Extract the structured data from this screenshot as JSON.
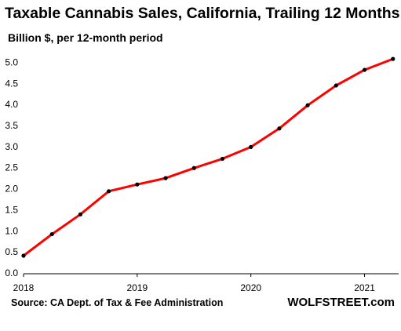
{
  "chart_data": {
    "type": "line",
    "title": "Taxable Cannabis Sales, California, Trailing 12 Months",
    "subtitle": "Billion $, per 12-month period",
    "xlabel": "",
    "ylabel": "",
    "x": [
      2018.0,
      2018.25,
      2018.5,
      2018.75,
      2019.0,
      2019.25,
      2019.5,
      2019.75,
      2020.0,
      2020.25,
      2020.5,
      2020.75,
      2021.0,
      2021.25
    ],
    "series": [
      {
        "values": [
          0.41,
          0.92,
          1.39,
          1.94,
          2.1,
          2.25,
          2.49,
          2.71,
          2.99,
          3.43,
          3.98,
          4.45,
          4.82,
          5.08
        ]
      }
    ],
    "ylim": [
      0,
      5.25
    ],
    "xlim": [
      2018,
      2021.3
    ],
    "yticks": [
      "0.0",
      "0.5",
      "1.0",
      "1.5",
      "2.0",
      "2.5",
      "3.0",
      "3.5",
      "4.0",
      "4.5",
      "5.0"
    ],
    "xticks": [
      "2018",
      "2019",
      "2020",
      "2021"
    ],
    "line_color": "#ff0000",
    "marker_color": "#000000",
    "grid": false,
    "legend": "none"
  },
  "source": "Source: CA Dept. of Tax & Fee Administration",
  "brand": "WOLFSTREET.com"
}
